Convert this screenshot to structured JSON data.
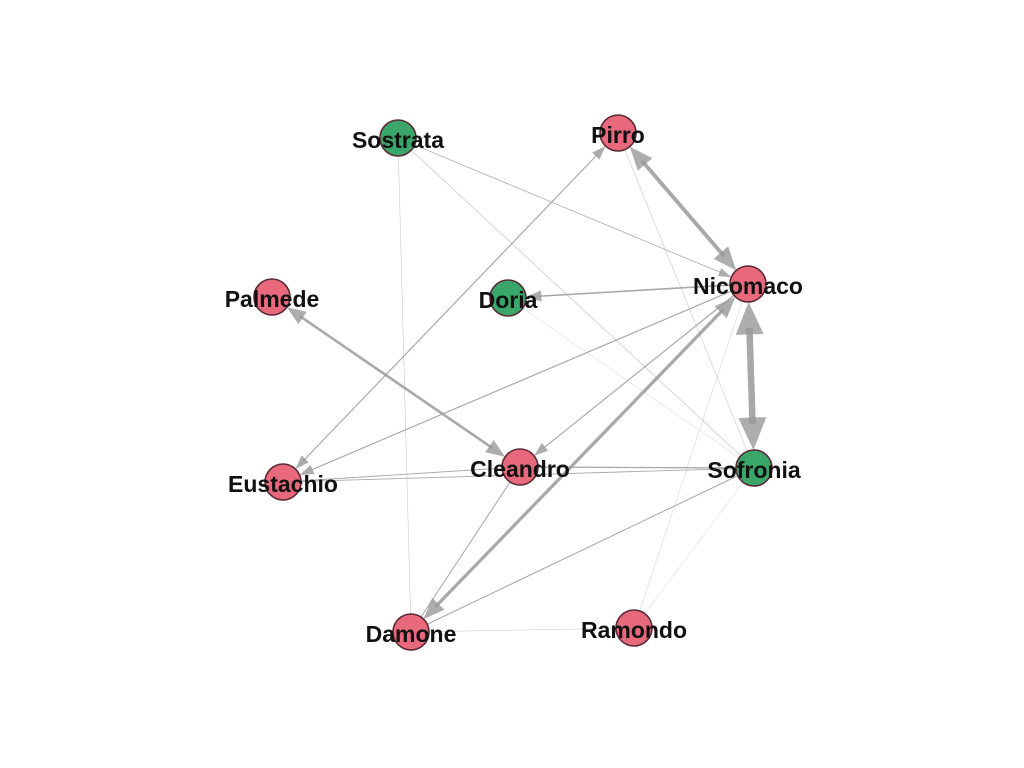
{
  "colors": {
    "female": "#3aa66a",
    "male": "#e8687c",
    "node_stroke": "#5a2a35",
    "edge": "#999999"
  },
  "nodes": [
    {
      "id": "sostrata",
      "label": "Sostrata",
      "group": "female"
    },
    {
      "id": "pirro",
      "label": "Pirro",
      "group": "male"
    },
    {
      "id": "nicomaco",
      "label": "Nicomaco",
      "group": "male"
    },
    {
      "id": "doria",
      "label": "Doria",
      "group": "female"
    },
    {
      "id": "palmede",
      "label": "Palmede",
      "group": "male"
    },
    {
      "id": "eustachio",
      "label": "Eustachio",
      "group": "male"
    },
    {
      "id": "cleandro",
      "label": "Cleandro",
      "group": "male"
    },
    {
      "id": "sofronia",
      "label": "Sofronia",
      "group": "female"
    },
    {
      "id": "damone",
      "label": "Damone",
      "group": "male"
    },
    {
      "id": "ramondo",
      "label": "Ramondo",
      "group": "male"
    }
  ],
  "edges": [
    {
      "source": "nicomaco",
      "target": "sofronia",
      "weight": 5,
      "directed": true,
      "bidirectional": true
    },
    {
      "source": "nicomaco",
      "target": "pirro",
      "weight": 3,
      "directed": true,
      "bidirectional": true
    },
    {
      "source": "cleandro",
      "target": "palmede",
      "weight": 2,
      "directed": true,
      "bidirectional": true
    },
    {
      "source": "nicomaco",
      "target": "damone",
      "weight": 2.5,
      "directed": true,
      "bidirectional": true
    },
    {
      "source": "nicomaco",
      "target": "doria",
      "weight": 1.2,
      "directed": true,
      "bidirectional": false
    },
    {
      "source": "nicomaco",
      "target": "eustachio",
      "weight": 0.9,
      "directed": true,
      "bidirectional": false
    },
    {
      "source": "nicomaco",
      "target": "cleandro",
      "weight": 0.9,
      "directed": true,
      "bidirectional": false
    },
    {
      "source": "eustachio",
      "target": "pirro",
      "weight": 0.9,
      "directed": true,
      "bidirectional": true
    },
    {
      "source": "sostrata",
      "target": "nicomaco",
      "weight": 0.6,
      "directed": true,
      "bidirectional": false
    },
    {
      "source": "sostrata",
      "target": "sofronia",
      "weight": 0.5,
      "directed": false,
      "bidirectional": false
    },
    {
      "source": "sostrata",
      "target": "damone",
      "weight": 0.4,
      "directed": false,
      "bidirectional": false
    },
    {
      "source": "pirro",
      "target": "sofronia",
      "weight": 0.4,
      "directed": false,
      "bidirectional": false
    },
    {
      "source": "doria",
      "target": "sofronia",
      "weight": 0.3,
      "directed": false,
      "bidirectional": false
    },
    {
      "source": "cleandro",
      "target": "sofronia",
      "weight": 1.0,
      "directed": false,
      "bidirectional": false
    },
    {
      "source": "eustachio",
      "target": "sofronia",
      "weight": 0.7,
      "directed": false,
      "bidirectional": false
    },
    {
      "source": "eustachio",
      "target": "cleandro",
      "weight": 0.7,
      "directed": false,
      "bidirectional": false
    },
    {
      "source": "cleandro",
      "target": "damone",
      "weight": 0.8,
      "directed": false,
      "bidirectional": false
    },
    {
      "source": "sofronia",
      "target": "damone",
      "weight": 0.8,
      "directed": false,
      "bidirectional": false
    },
    {
      "source": "damone",
      "target": "ramondo",
      "weight": 0.4,
      "directed": false,
      "bidirectional": false
    },
    {
      "source": "nicomaco",
      "target": "ramondo",
      "weight": 0.3,
      "directed": false,
      "bidirectional": false
    },
    {
      "source": "sofronia",
      "target": "ramondo",
      "weight": 0.3,
      "directed": false,
      "bidirectional": false
    }
  ]
}
